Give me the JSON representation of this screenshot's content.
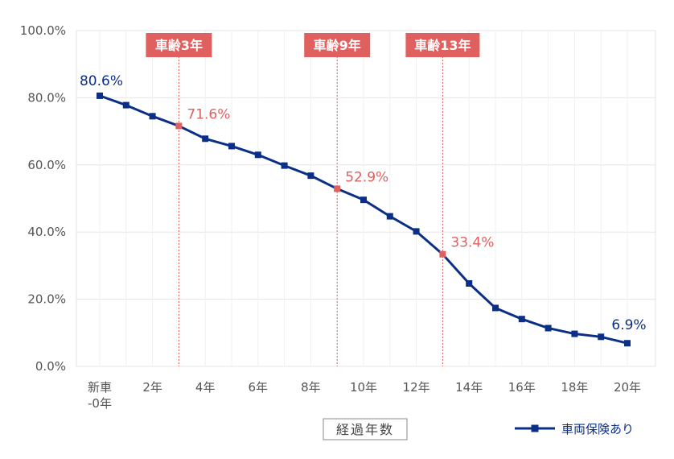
{
  "chart_data": {
    "type": "line",
    "title": "",
    "xlabel": "経過年数",
    "ylabel": "",
    "ylim": [
      0,
      100
    ],
    "yticks": [
      "0.0%",
      "20.0%",
      "40.0%",
      "60.0%",
      "80.0%",
      "100.0%"
    ],
    "x": [
      0,
      1,
      2,
      3,
      4,
      5,
      6,
      7,
      8,
      9,
      10,
      11,
      12,
      13,
      14,
      15,
      16,
      17,
      18,
      19,
      20
    ],
    "xtick_values": [
      0,
      2,
      4,
      6,
      8,
      10,
      12,
      14,
      16,
      18,
      20
    ],
    "xtick_labels": [
      "新車\n-0年",
      "2年",
      "4年",
      "6年",
      "8年",
      "10年",
      "12年",
      "14年",
      "16年",
      "18年",
      "20年"
    ],
    "series": [
      {
        "name": "車両保険あり",
        "color": "#0b2f87",
        "values": [
          80.6,
          77.8,
          74.5,
          71.6,
          67.8,
          65.6,
          63.0,
          59.8,
          56.8,
          52.9,
          49.6,
          44.7,
          40.2,
          33.4,
          24.7,
          17.4,
          14.1,
          11.4,
          9.7,
          8.8,
          6.9
        ]
      }
    ],
    "grid": true,
    "legend": "bottom-right",
    "highlight_color": "#e06060",
    "callouts": [
      {
        "x": 3,
        "label": "車齢3年"
      },
      {
        "x": 9,
        "label": "車齢9年"
      },
      {
        "x": 13,
        "label": "車齢13年"
      }
    ],
    "annotations": [
      {
        "x": 0,
        "text": "80.6%",
        "color": "#0b2f87"
      },
      {
        "x": 3,
        "text": "71.6%",
        "color": "#e06060"
      },
      {
        "x": 9,
        "text": "52.9%",
        "color": "#e06060"
      },
      {
        "x": 13,
        "text": "33.4%",
        "color": "#e06060"
      },
      {
        "x": 20,
        "text": "6.9%",
        "color": "#0b2f87"
      }
    ]
  }
}
